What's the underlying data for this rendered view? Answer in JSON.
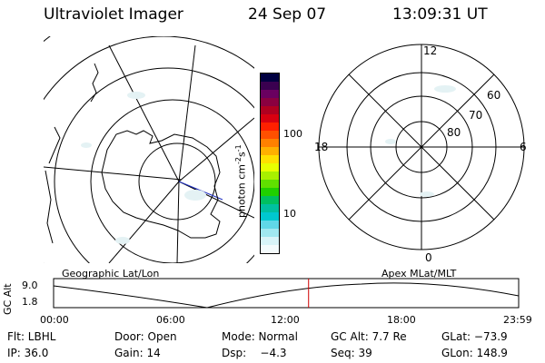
{
  "header": {
    "title": "Ultraviolet Imager",
    "date": "24 Sep 07",
    "time": "13:09:31 UT"
  },
  "geo_panel": {
    "caption": "Geographic Lat/Lon"
  },
  "colorbar": {
    "unit_label": "photon cm",
    "unit_exp1": "-2",
    "unit_s": "s",
    "unit_exp2": "-1",
    "tick_labels": [
      "100",
      "10"
    ],
    "colors": [
      "#000040",
      "#3a0050",
      "#6a0060",
      "#8a0040",
      "#b00020",
      "#d80010",
      "#ff2000",
      "#ff5000",
      "#ff8000",
      "#ffb000",
      "#ffe000",
      "#e8ff00",
      "#a8f000",
      "#60e000",
      "#20d000",
      "#00c060",
      "#00c0a0",
      "#00c8d0",
      "#60d8e8",
      "#a0e8f0",
      "#d8f4f8",
      "#f4fbfc"
    ]
  },
  "polar_panel": {
    "caption": "Apex MLat/MLT",
    "mlt_labels": {
      "top": "12",
      "right": "6",
      "bottom": "0",
      "left": "18"
    },
    "lat_labels": [
      "60",
      "70",
      "80"
    ]
  },
  "altitude_plot": {
    "ylabel": "GC Alt",
    "yticks": [
      "9.0",
      "1.8"
    ],
    "xticks": [
      "00:00",
      "06:00",
      "12:00",
      "18:00",
      "23:59"
    ],
    "current_time_marker": "13:09",
    "marker_color": "#d00000"
  },
  "info": {
    "row1": {
      "filter": "Flt: LBHL",
      "door": "Door: Open",
      "mode": "Mode: Normal",
      "gc_alt": "GC Alt: 7.7 Re",
      "glat": "GLat: −73.9"
    },
    "row2": {
      "ip": "IP: 36.0",
      "gain": "Gain: 14",
      "dsp": "Dsp:    −4.3",
      "seq": "Seq: 39",
      "glon": "GLon: 148.9"
    }
  }
}
